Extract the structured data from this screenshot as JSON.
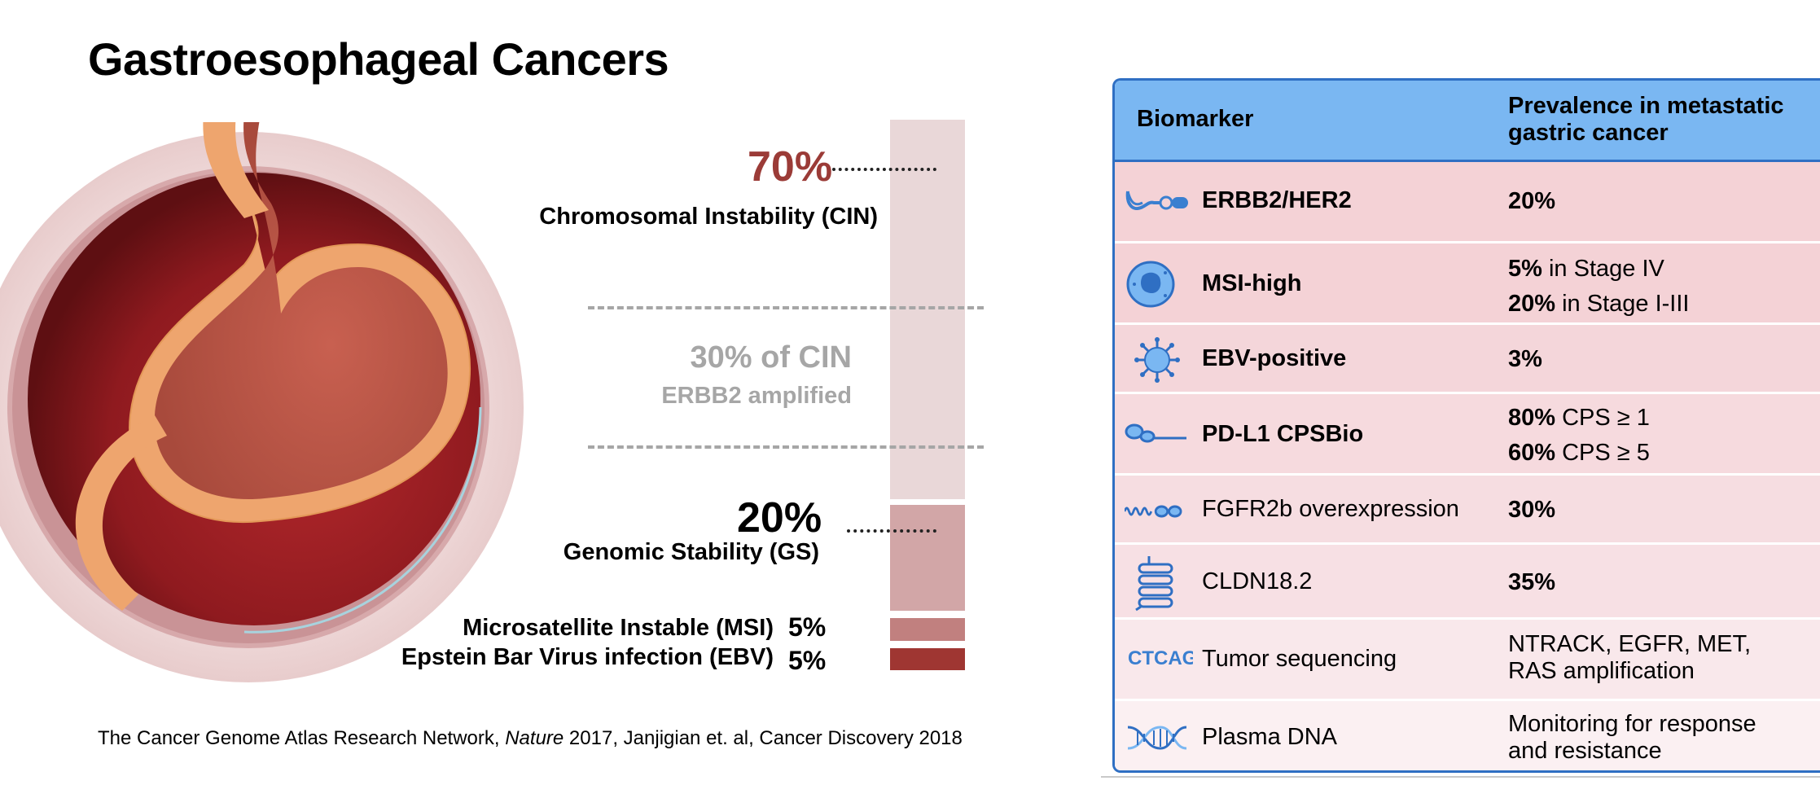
{
  "title": "Gastroesophageal Cancers",
  "diagram": {
    "cin": {
      "percent": "70%",
      "label": "Chromosomal Instability (CIN)"
    },
    "erbb2": {
      "percent": "30% of CIN",
      "label": "ERBB2 amplified"
    },
    "gs": {
      "percent": "20%",
      "label": "Genomic Stability (GS)"
    },
    "msi": {
      "percent": "5%",
      "label": "Microsatellite Instable (MSI)"
    },
    "ebv": {
      "percent": "5%",
      "label": "Epstein Bar Virus infection (EBV)"
    },
    "colors": {
      "cin": "#e9d7d8",
      "gs": "#d2a6a7",
      "msi": "#c1807f",
      "ebv": "#9f3632",
      "cin_pct": "#9b3b37"
    }
  },
  "citation": {
    "part1": "The Cancer Genome Atlas Research Network, ",
    "journal": "Nature",
    "part2": " 2017, Janjigian et. al,  Cancer Discovery 2018"
  },
  "table": {
    "header": {
      "biomarker": "Biomarker",
      "prevalence_line1": "Prevalence in metastatic",
      "prevalence_line2": "gastric cancer"
    },
    "rows": [
      {
        "icon": "her2-receptor-icon",
        "name": "ERBB2/HER2",
        "value": "20%"
      },
      {
        "icon": "msi-cell-icon",
        "name": "MSI-high",
        "value1_bold": "5%",
        "value1_rest": " in Stage IV",
        "value2_bold": "20%",
        "value2_rest": " in Stage I-III"
      },
      {
        "icon": "virus-icon",
        "name": "EBV-positive",
        "value": "3%"
      },
      {
        "icon": "pdl1-receptor-icon",
        "name": "PD-L1 CPSBio",
        "value1_bold": "80%",
        "value1_rest": " CPS ≥ 1",
        "value2_bold": "60%",
        "value2_rest": " CPS ≥ 5"
      },
      {
        "icon": "fgfr2b-receptor-icon",
        "name": "FGFR2b overexpression",
        "value": "30%"
      },
      {
        "icon": "claudin-icon",
        "name": "CLDN18.2",
        "value": "35%"
      },
      {
        "icon": "sequence-icon",
        "icon_text": "CTCAG",
        "name": "Tumor sequencing",
        "value_line1": "NTRACK, EGFR, MET,",
        "value_line2": "RAS amplification"
      },
      {
        "icon": "dna-helix-icon",
        "name": "Plasma DNA",
        "value_line1": "Monitoring for response",
        "value_line2": "and resistance"
      }
    ],
    "colors": {
      "header": "#7ab7f2",
      "border": "#2f6fc3",
      "icon": "#3a7fd0"
    }
  }
}
